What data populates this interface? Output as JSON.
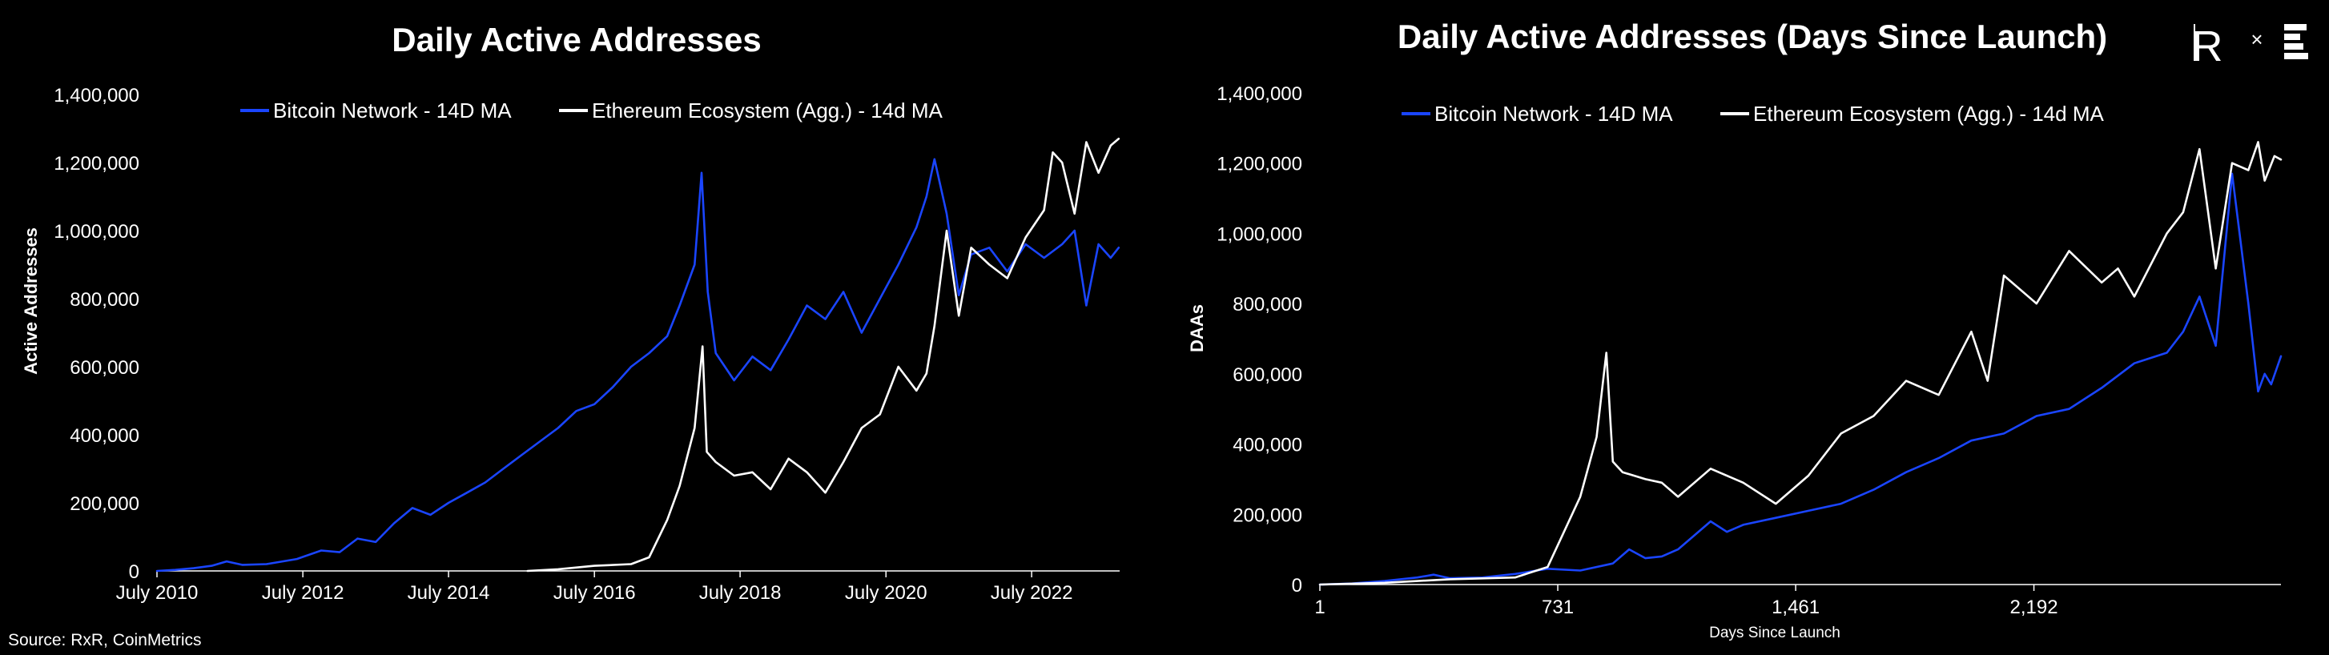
{
  "colors": {
    "background": "#000000",
    "bitcoin": "#1a45ff",
    "ethereum": "#ffffff",
    "text": "#ffffff"
  },
  "source": "Source: RxR, CoinMetrics",
  "logo": {
    "text": "R",
    "separator": "×",
    "partner_icon": "stacked-bars-logo"
  },
  "chart_data": [
    {
      "type": "line",
      "title": "Daily Active Addresses",
      "xlabel": "",
      "ylabel": "Active Addresses",
      "x_kind": "date",
      "xlim": [
        "2010-07-01",
        "2023-09-15"
      ],
      "ylim": [
        0,
        1400000
      ],
      "yticks": [
        0,
        200000,
        400000,
        600000,
        800000,
        1000000,
        1200000,
        1400000
      ],
      "ytick_labels": [
        "0",
        "200,000",
        "400,000",
        "600,000",
        "800,000",
        "1,000,000",
        "1,200,000",
        "1,400,000"
      ],
      "xticks": [
        "2010-07-01",
        "2012-07-01",
        "2014-07-01",
        "2016-07-01",
        "2018-07-01",
        "2020-07-01",
        "2022-07-01"
      ],
      "xtick_labels": [
        "July 2010",
        "July 2012",
        "July 2014",
        "July 2016",
        "July 2018",
        "July 2020",
        "July 2022"
      ],
      "grid": false,
      "legend_position": "top-center",
      "series": [
        {
          "name": "Bitcoin Network - 14D MA",
          "color": "#1a45ff",
          "x": [
            "2010-07-01",
            "2010-10-01",
            "2011-01-01",
            "2011-04-01",
            "2011-06-15",
            "2011-09-01",
            "2012-01-01",
            "2012-06-01",
            "2012-10-01",
            "2013-01-01",
            "2013-04-01",
            "2013-07-01",
            "2013-10-01",
            "2014-01-01",
            "2014-04-01",
            "2014-07-01",
            "2014-10-01",
            "2015-01-01",
            "2015-04-01",
            "2015-07-01",
            "2015-10-01",
            "2016-01-01",
            "2016-04-01",
            "2016-07-01",
            "2016-10-01",
            "2017-01-01",
            "2017-04-01",
            "2017-07-01",
            "2017-09-01",
            "2017-11-15",
            "2017-12-20",
            "2018-01-20",
            "2018-03-01",
            "2018-06-01",
            "2018-09-01",
            "2018-12-01",
            "2019-03-01",
            "2019-06-01",
            "2019-09-01",
            "2019-12-01",
            "2020-03-01",
            "2020-06-01",
            "2020-09-01",
            "2020-12-01",
            "2021-01-20",
            "2021-03-01",
            "2021-05-01",
            "2021-07-01",
            "2021-09-01",
            "2021-12-01",
            "2022-03-01",
            "2022-06-01",
            "2022-09-01",
            "2022-12-01",
            "2023-02-01",
            "2023-04-01",
            "2023-06-01",
            "2023-08-01",
            "2023-09-10"
          ],
          "values": [
            0,
            3000,
            8000,
            15000,
            28000,
            18000,
            20000,
            35000,
            60000,
            55000,
            95000,
            85000,
            140000,
            185000,
            165000,
            200000,
            230000,
            260000,
            300000,
            340000,
            380000,
            420000,
            470000,
            490000,
            540000,
            600000,
            640000,
            690000,
            780000,
            900000,
            1170000,
            820000,
            640000,
            560000,
            630000,
            590000,
            680000,
            780000,
            740000,
            820000,
            700000,
            800000,
            900000,
            1010000,
            1100000,
            1210000,
            1050000,
            810000,
            930000,
            950000,
            880000,
            960000,
            920000,
            960000,
            1000000,
            780000,
            960000,
            920000,
            950000
          ]
        },
        {
          "name": "Ethereum Ecosystem (Agg.) - 14d MA",
          "color": "#ffffff",
          "x": [
            "2015-08-01",
            "2016-01-01",
            "2016-07-01",
            "2017-01-01",
            "2017-04-01",
            "2017-07-01",
            "2017-09-01",
            "2017-11-15",
            "2017-12-25",
            "2018-01-15",
            "2018-03-01",
            "2018-06-01",
            "2018-09-01",
            "2018-12-01",
            "2019-03-01",
            "2019-06-01",
            "2019-09-01",
            "2019-12-01",
            "2020-03-01",
            "2020-06-01",
            "2020-09-01",
            "2020-12-01",
            "2021-01-20",
            "2021-03-01",
            "2021-05-01",
            "2021-07-01",
            "2021-09-01",
            "2021-12-01",
            "2022-03-01",
            "2022-06-01",
            "2022-09-01",
            "2022-10-15",
            "2022-12-01",
            "2023-02-01",
            "2023-04-01",
            "2023-06-01",
            "2023-08-01",
            "2023-09-10"
          ],
          "values": [
            0,
            5000,
            15000,
            20000,
            40000,
            150000,
            250000,
            420000,
            660000,
            350000,
            320000,
            280000,
            290000,
            240000,
            330000,
            290000,
            230000,
            320000,
            420000,
            460000,
            600000,
            530000,
            580000,
            720000,
            1000000,
            750000,
            950000,
            900000,
            860000,
            980000,
            1060000,
            1230000,
            1200000,
            1050000,
            1260000,
            1170000,
            1250000,
            1270000
          ]
        }
      ]
    },
    {
      "type": "line",
      "title": "Daily Active Addresses (Days Since Launch)",
      "xlabel": "Days Since Launch",
      "ylabel": "DAAs",
      "x_kind": "number",
      "xlim": [
        1,
        2950
      ],
      "ylim": [
        0,
        1400000
      ],
      "yticks": [
        0,
        200000,
        400000,
        600000,
        800000,
        1000000,
        1200000,
        1400000
      ],
      "ytick_labels": [
        "0",
        "200,000",
        "400,000",
        "600,000",
        "800,000",
        "1,000,000",
        "1,200,000",
        "1,400,000"
      ],
      "xticks": [
        1,
        731,
        1461,
        2192
      ],
      "xtick_labels": [
        "1",
        "731",
        "1,461",
        "2,192"
      ],
      "grid": false,
      "legend_position": "top-center",
      "series": [
        {
          "name": "Bitcoin Network - 14D MA",
          "color": "#1a45ff",
          "x": [
            1,
            100,
            200,
            300,
            350,
            400,
            500,
            600,
            700,
            800,
            900,
            950,
            1000,
            1050,
            1100,
            1200,
            1250,
            1300,
            1400,
            1500,
            1600,
            1700,
            1800,
            1900,
            2000,
            2100,
            2200,
            2300,
            2400,
            2500,
            2600,
            2650,
            2700,
            2750,
            2800,
            2850,
            2880,
            2900,
            2920,
            2950
          ],
          "values": [
            0,
            3000,
            10000,
            20000,
            28000,
            18000,
            20000,
            30000,
            45000,
            40000,
            60000,
            100000,
            75000,
            80000,
            100000,
            180000,
            150000,
            170000,
            190000,
            210000,
            230000,
            270000,
            320000,
            360000,
            410000,
            430000,
            480000,
            500000,
            560000,
            630000,
            660000,
            720000,
            820000,
            680000,
            1170000,
            800000,
            550000,
            600000,
            570000,
            650000
          ]
        },
        {
          "name": "Ethereum Ecosystem (Agg.) - 14d MA",
          "color": "#ffffff",
          "x": [
            1,
            200,
            400,
            600,
            700,
            750,
            800,
            850,
            880,
            900,
            930,
            1000,
            1050,
            1100,
            1200,
            1300,
            1400,
            1500,
            1600,
            1700,
            1800,
            1900,
            2000,
            2050,
            2100,
            2200,
            2300,
            2400,
            2450,
            2500,
            2600,
            2650,
            2700,
            2750,
            2800,
            2850,
            2880,
            2900,
            2930,
            2950
          ],
          "values": [
            0,
            5000,
            15000,
            20000,
            50000,
            150000,
            250000,
            420000,
            660000,
            350000,
            320000,
            300000,
            290000,
            250000,
            330000,
            290000,
            230000,
            310000,
            430000,
            480000,
            580000,
            540000,
            720000,
            580000,
            880000,
            800000,
            950000,
            860000,
            900000,
            820000,
            1000000,
            1060000,
            1240000,
            900000,
            1200000,
            1180000,
            1260000,
            1150000,
            1220000,
            1210000
          ]
        }
      ]
    }
  ]
}
